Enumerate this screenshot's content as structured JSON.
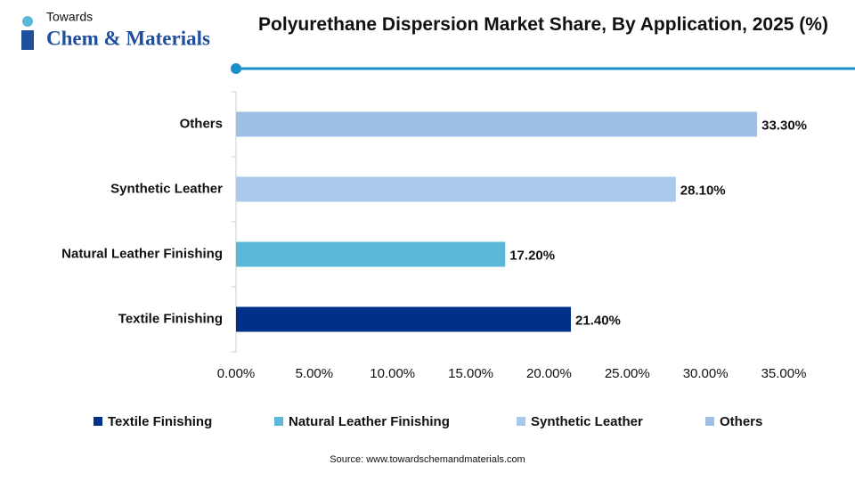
{
  "logo": {
    "small": "Towards",
    "large": "Chem & Materials"
  },
  "source": "Source: www.towardschemandmaterials.com",
  "chart_data": {
    "type": "bar",
    "orientation": "horizontal",
    "title": "Polyurethane Dispersion Market  Share, By Application, 2025 (%)",
    "categories": [
      "Textile Finishing",
      "Natural Leather Finishing",
      "Synthetic Leather",
      "Others"
    ],
    "values": [
      21.4,
      17.2,
      28.1,
      33.3
    ],
    "value_labels": [
      "21.40%",
      "17.20%",
      "28.10%",
      "33.30%"
    ],
    "colors": [
      "#003087",
      "#5bb8d8",
      "#a8c8ec",
      "#9fc0e6"
    ],
    "xlim": [
      0,
      35
    ],
    "xticks": [
      {
        "value": 0,
        "label": "0.00%"
      },
      {
        "value": 5,
        "label": "5.00%"
      },
      {
        "value": 10,
        "label": "10.00%"
      },
      {
        "value": 15,
        "label": "15.00%"
      },
      {
        "value": 20,
        "label": "20.00%"
      },
      {
        "value": 25,
        "label": "25.00%"
      },
      {
        "value": 30,
        "label": "30.00%"
      },
      {
        "value": 35,
        "label": "35.00%"
      }
    ],
    "legend": "bottom",
    "grid": false
  }
}
